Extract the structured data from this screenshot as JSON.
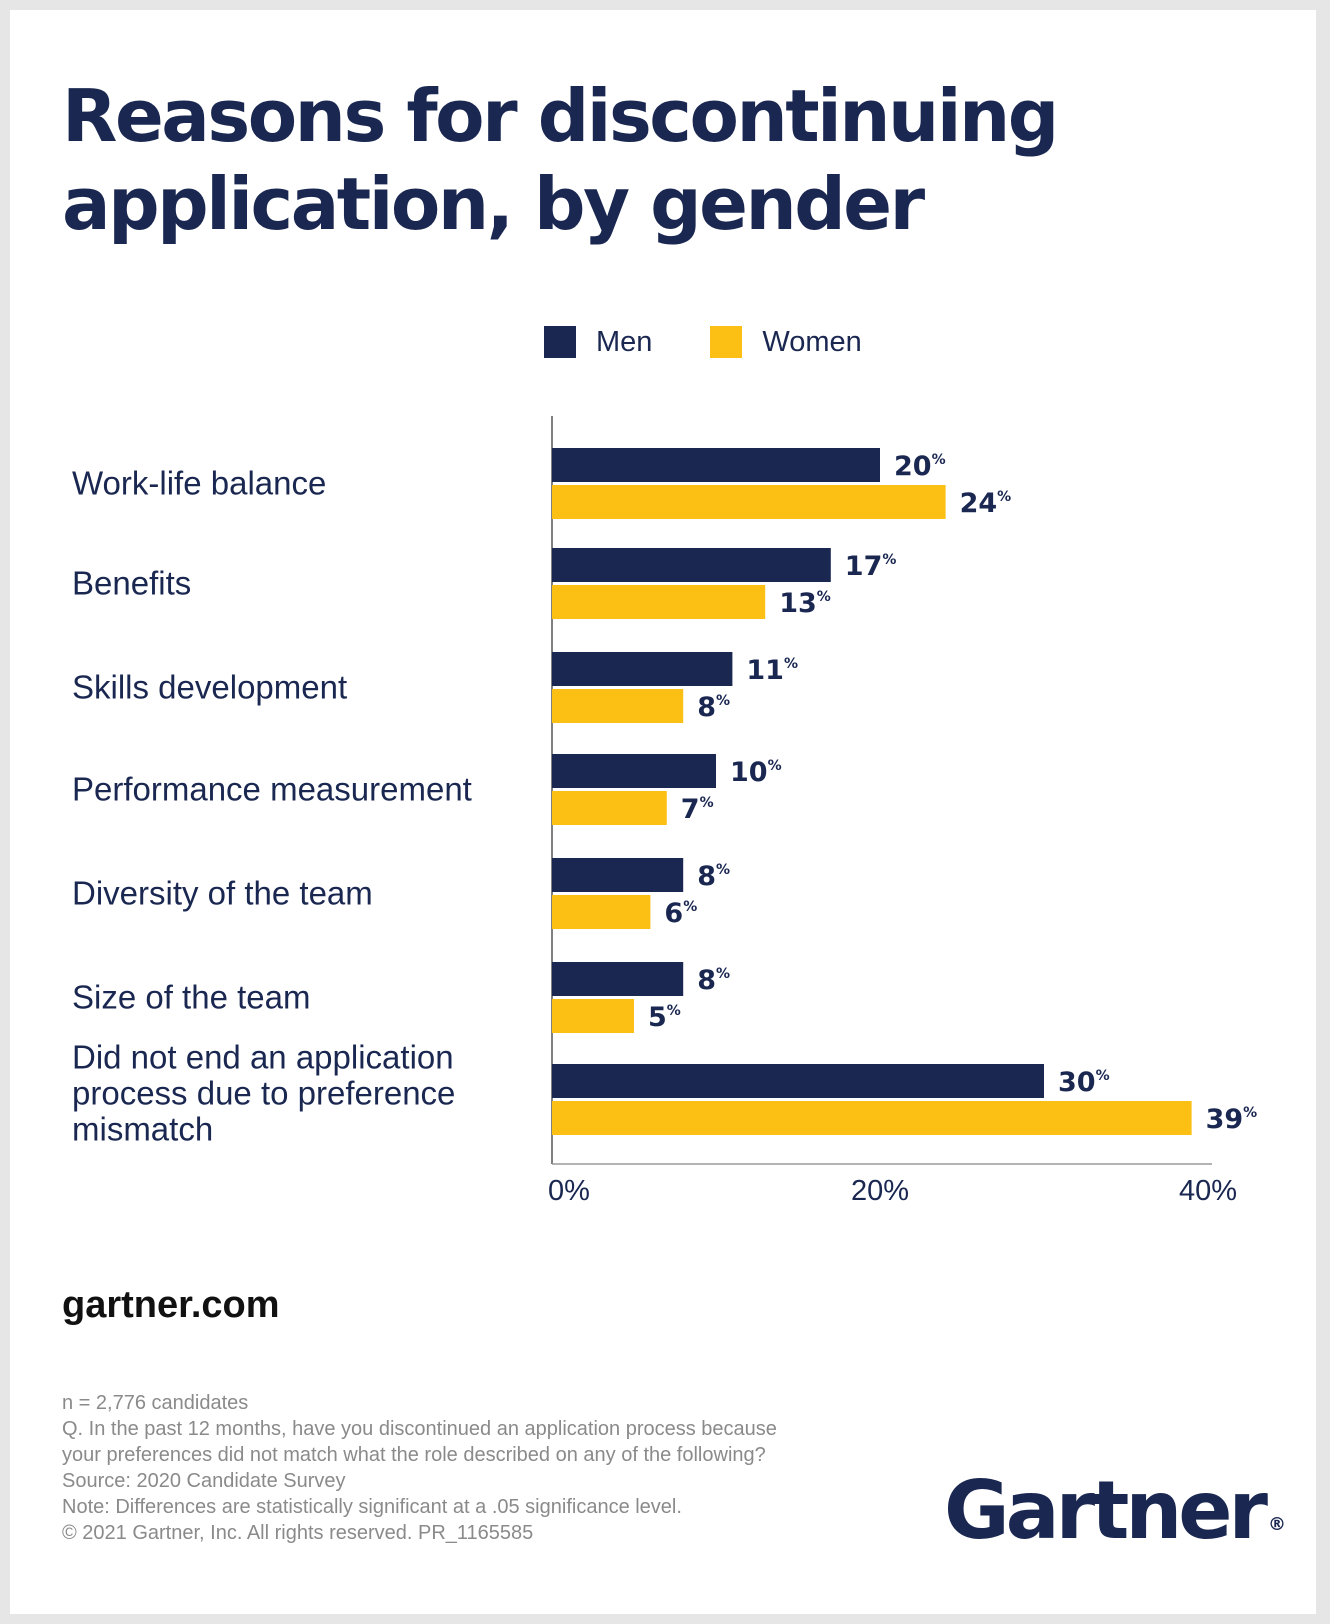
{
  "title": "Reasons for discontinuing application, by gender",
  "legend": [
    {
      "label": "Men",
      "color": "#1a2751"
    },
    {
      "label": "Women",
      "color": "#fcbf13"
    }
  ],
  "chart_data": {
    "type": "bar",
    "orientation": "horizontal",
    "title": "Reasons for discontinuing application, by gender",
    "categories": [
      "Work-life balance",
      "Benefits",
      "Skills development",
      "Performance measurement",
      "Diversity of the team",
      "Size of the team",
      "Did not end an application process due to preference mismatch"
    ],
    "series": [
      {
        "name": "Men",
        "color": "#1a2751",
        "values": [
          20,
          17,
          11,
          10,
          8,
          8,
          30
        ]
      },
      {
        "name": "Women",
        "color": "#fcbf13",
        "values": [
          24,
          13,
          8,
          7,
          6,
          5,
          39
        ]
      }
    ],
    "value_suffix": "%",
    "xlim": [
      0,
      40
    ],
    "x_ticks": [
      0,
      20,
      40
    ],
    "x_tick_labels": [
      "0%",
      "20%",
      "40%"
    ],
    "xlabel": "",
    "ylabel": "",
    "grid": false,
    "legend_position": "top"
  },
  "source_link": "gartner.com",
  "footnotes": [
    "n = 2,776 candidates",
    "Q. In the past 12 months, have you discontinued an application process because",
    "your preferences did not match what the role described on any of the following?",
    "Source: 2020 Candidate Survey",
    "Note: Differences are statistically significant at a .05 significance level.",
    "© 2021 Gartner, Inc. All rights reserved. PR_1165585"
  ],
  "logo": {
    "text": "Gartner",
    "mark": "®"
  }
}
